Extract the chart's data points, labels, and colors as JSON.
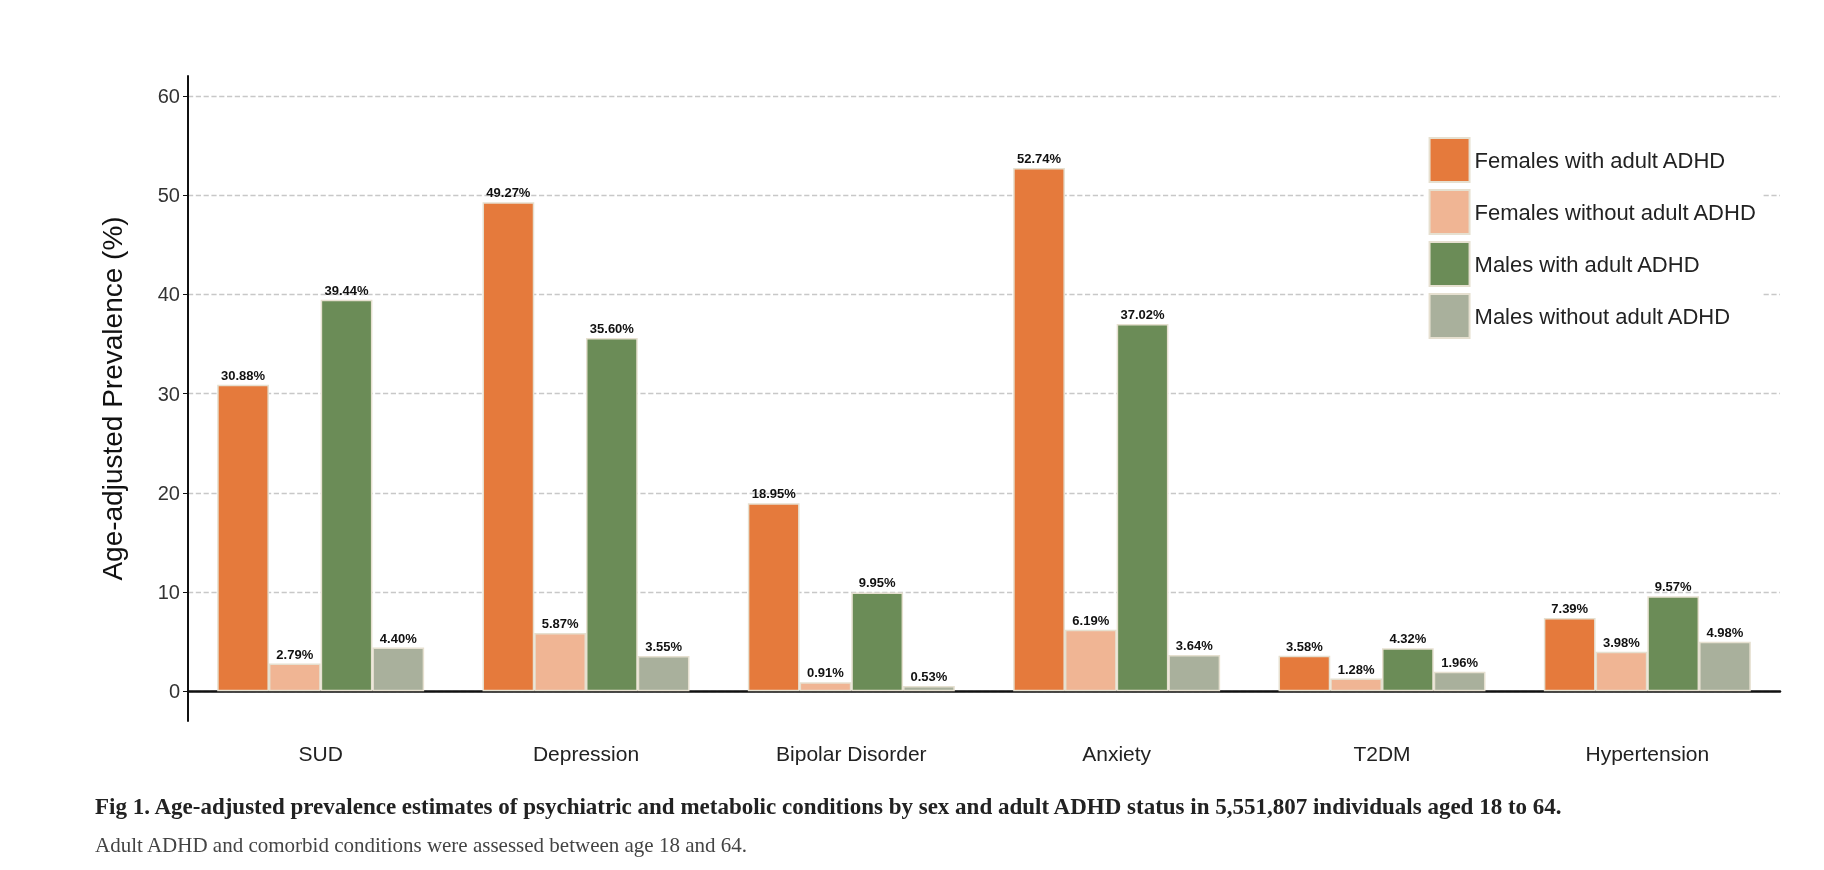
{
  "chart_data": {
    "type": "bar",
    "title": "Fig 1. Age-adjusted prevalence estimates of psychiatric and metabolic conditions by sex and adult ADHD status in 5,551,807 individuals aged 18 to 64.",
    "annotations": [
      "Adult ADHD and comorbid conditions were assessed between age 18 and 64."
    ],
    "ylabel": "Age-adjusted Prevalence (%)",
    "categories": [
      "SUD",
      "Depression",
      "Bipolar Disorder",
      "Anxiety",
      "T2DM",
      "Hypertension"
    ],
    "series": [
      {
        "name": "Females with adult ADHD",
        "color": "#e57a3c",
        "values": [
          30.88,
          49.27,
          18.95,
          52.74,
          3.58,
          7.39
        ],
        "value_labels": [
          "30.88%",
          "49.27%",
          "18.95%",
          "52.74%",
          "3.58%",
          "7.39%"
        ]
      },
      {
        "name": "Females without adult ADHD",
        "color": "#f0b594",
        "values": [
          2.79,
          5.87,
          0.91,
          6.19,
          1.28,
          3.98
        ],
        "value_labels": [
          "2.79%",
          "5.87%",
          "0.91%",
          "6.19%",
          "1.28%",
          "3.98%"
        ]
      },
      {
        "name": "Males with adult ADHD",
        "color": "#6b8c57",
        "values": [
          39.44,
          35.6,
          9.95,
          37.02,
          4.32,
          9.57
        ],
        "value_labels": [
          "39.44%",
          "35.60%",
          "9.95%",
          "37.02%",
          "4.32%",
          "9.57%"
        ]
      },
      {
        "name": "Males without adult ADHD",
        "color": "#a9b09c",
        "values": [
          4.4,
          3.55,
          0.53,
          3.64,
          1.96,
          4.98
        ],
        "value_labels": [
          "4.40%",
          "3.55%",
          "0.53%",
          "3.64%",
          "1.96%",
          "4.98%"
        ]
      }
    ],
    "ylim": [
      -3,
      62
    ],
    "yticks": [
      0,
      10,
      20,
      30,
      40,
      50,
      60
    ],
    "grid": "y",
    "legend": "top right"
  }
}
